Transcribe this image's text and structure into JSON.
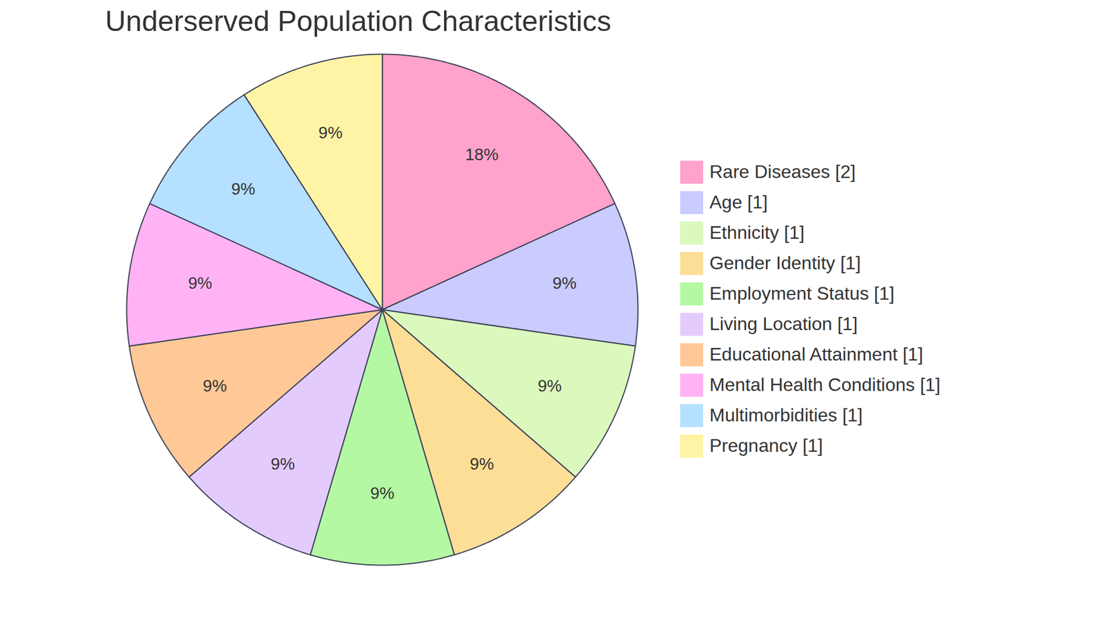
{
  "chart_data": {
    "type": "pie",
    "title": "Underserved Population Characteristics",
    "categories": [
      "Rare Diseases [2]",
      "Age [1]",
      "Ethnicity [1]",
      "Gender Identity [1]",
      "Employment Status [1]",
      "Living Location [1]",
      "Educational Attainment [1]",
      "Mental Health Conditions [1]",
      "Multimorbidities [1]",
      "Pregnancy [1]"
    ],
    "values": [
      18,
      9,
      9,
      9,
      9,
      9,
      9,
      9,
      9,
      9
    ],
    "value_labels": [
      "18%",
      "9%",
      "9%",
      "9%",
      "9%",
      "9%",
      "9%",
      "9%",
      "9%",
      "9%"
    ],
    "colors": [
      "#FFA3CC",
      "#CACBFF",
      "#DBF9BD",
      "#FDDE96",
      "#B4F8A4",
      "#E4CBFD",
      "#FFC897",
      "#FFB3F5",
      "#B6E0FF",
      "#FFF4A5"
    ],
    "data_labels": true,
    "legend": "right"
  }
}
